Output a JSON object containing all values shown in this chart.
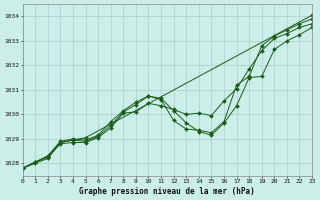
{
  "background_color": "#cceee8",
  "grid_color": "#aacccc",
  "line_color": "#1a5c1a",
  "marker_color": "#1a5c1a",
  "title": "Graphe pression niveau de la mer (hPa)",
  "xlim": [
    0,
    23
  ],
  "ylim": [
    1027.5,
    1034.5
  ],
  "yticks": [
    1028,
    1029,
    1030,
    1031,
    1032,
    1033,
    1034
  ],
  "xticks": [
    0,
    1,
    2,
    3,
    4,
    5,
    6,
    7,
    8,
    9,
    10,
    11,
    12,
    13,
    14,
    15,
    16,
    17,
    18,
    19,
    20,
    21,
    22,
    23
  ],
  "series": [
    {
      "x": [
        0,
        1,
        2,
        3,
        4,
        5,
        23
      ],
      "y": [
        1027.8,
        1028.0,
        1028.2,
        1028.85,
        1028.95,
        1029.05,
        1034.05
      ]
    },
    {
      "x": [
        0,
        1,
        2,
        3,
        4,
        5,
        6,
        7,
        8,
        9,
        10,
        11,
        12,
        13,
        14,
        15,
        16,
        17,
        18,
        19,
        20,
        21,
        22,
        23
      ],
      "y": [
        1027.8,
        1028.05,
        1028.25,
        1028.8,
        1028.85,
        1028.85,
        1029.05,
        1029.45,
        1030.05,
        1030.1,
        1030.45,
        1030.35,
        1030.2,
        1030.0,
        1030.05,
        1029.95,
        1030.55,
        1031.05,
        1031.85,
        1032.6,
        1033.1,
        1033.3,
        1033.55,
        1033.7
      ]
    },
    {
      "x": [
        0,
        1,
        2,
        3,
        4,
        5,
        6,
        7,
        8,
        9,
        10,
        11,
        12,
        13,
        14,
        15,
        16,
        17,
        18,
        19,
        20,
        21,
        22,
        23
      ],
      "y": [
        1027.8,
        1028.05,
        1028.3,
        1028.85,
        1028.95,
        1028.9,
        1029.1,
        1029.55,
        1030.1,
        1030.4,
        1030.75,
        1030.65,
        1030.15,
        1029.65,
        1029.3,
        1029.15,
        1029.65,
        1030.35,
        1031.5,
        1031.55,
        1032.65,
        1033.0,
        1033.25,
        1033.55
      ]
    },
    {
      "x": [
        0,
        1,
        2,
        3,
        4,
        5,
        6,
        7,
        8,
        9,
        10,
        11,
        12,
        13,
        14,
        15,
        16,
        17,
        18,
        19,
        20,
        21,
        22,
        23
      ],
      "y": [
        1027.8,
        1028.05,
        1028.3,
        1028.9,
        1029.0,
        1028.95,
        1029.15,
        1029.7,
        1030.15,
        1030.5,
        1030.75,
        1030.6,
        1029.75,
        1029.4,
        1029.35,
        1029.25,
        1029.7,
        1031.2,
        1031.55,
        1032.8,
        1033.2,
        1033.45,
        1033.7,
        1033.9
      ]
    }
  ]
}
